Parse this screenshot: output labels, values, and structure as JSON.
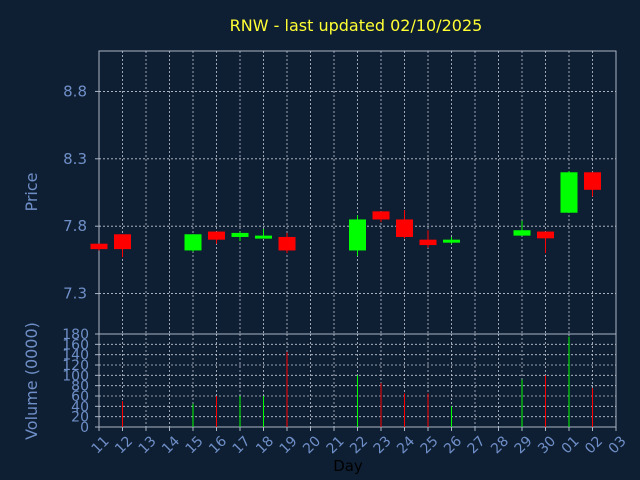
{
  "chart_data": {
    "type": "candlestick",
    "title": "RNW - last updated 02/10/2025",
    "xlabel": "Day",
    "ylabel": "Price",
    "volume_label": "Volume (0000)",
    "x_ticks": [
      "11",
      "12",
      "13",
      "14",
      "15",
      "16",
      "17",
      "18",
      "19",
      "20",
      "21",
      "22",
      "23",
      "24",
      "25",
      "26",
      "27",
      "28",
      "29",
      "30",
      "01",
      "02",
      "03"
    ],
    "price_ticks": [
      7.3,
      7.8,
      8.3,
      8.8
    ],
    "price_range": [
      7.0,
      9.1
    ],
    "volume_ticks": [
      0,
      20,
      40,
      60,
      80,
      100,
      120,
      140,
      160,
      180
    ],
    "volume_range": [
      0,
      180
    ],
    "grid": true,
    "candles": [
      {
        "day": "11",
        "open": 7.67,
        "high": 7.67,
        "low": 7.62,
        "close": 7.63,
        "volume": 0
      },
      {
        "day": "12",
        "open": 7.74,
        "high": 7.74,
        "low": 7.57,
        "close": 7.63,
        "volume": 50
      },
      {
        "day": "15",
        "open": 7.62,
        "high": 7.74,
        "low": 7.61,
        "close": 7.74,
        "volume": 45
      },
      {
        "day": "16",
        "open": 7.76,
        "high": 7.76,
        "low": 7.67,
        "close": 7.7,
        "volume": 60
      },
      {
        "day": "17",
        "open": 7.72,
        "high": 7.76,
        "low": 7.69,
        "close": 7.75,
        "volume": 60
      },
      {
        "day": "18",
        "open": 7.71,
        "high": 7.78,
        "low": 7.71,
        "close": 7.73,
        "volume": 60
      },
      {
        "day": "19",
        "open": 7.72,
        "high": 7.75,
        "low": 7.6,
        "close": 7.62,
        "volume": 145
      },
      {
        "day": "22",
        "open": 7.62,
        "high": 7.88,
        "low": 7.58,
        "close": 7.85,
        "volume": 100
      },
      {
        "day": "23",
        "open": 7.91,
        "high": 7.91,
        "low": 7.83,
        "close": 7.85,
        "volume": 85
      },
      {
        "day": "24",
        "open": 7.85,
        "high": 7.92,
        "low": 7.71,
        "close": 7.72,
        "volume": 65
      },
      {
        "day": "25",
        "open": 7.7,
        "high": 7.77,
        "low": 7.64,
        "close": 7.66,
        "volume": 65
      },
      {
        "day": "26",
        "open": 7.68,
        "high": 7.72,
        "low": 7.67,
        "close": 7.7,
        "volume": 40
      },
      {
        "day": "29",
        "open": 7.73,
        "high": 7.84,
        "low": 7.73,
        "close": 7.77,
        "volume": 92
      },
      {
        "day": "30",
        "open": 7.76,
        "high": 7.76,
        "low": 7.6,
        "close": 7.71,
        "volume": 100
      },
      {
        "day": "01",
        "open": 7.9,
        "high": 8.21,
        "low": 7.9,
        "close": 8.2,
        "volume": 175
      },
      {
        "day": "02",
        "open": 8.2,
        "high": 8.2,
        "low": 8.02,
        "close": 8.07,
        "volume": 75
      }
    ],
    "colors": {
      "background": "#0f1f33",
      "axis": "#aab4c4",
      "grid": "#c0c8d4",
      "title": "#ffff33",
      "tick_label": "#6f8fc8",
      "up": "#00ff00",
      "down": "#ff0000"
    }
  }
}
